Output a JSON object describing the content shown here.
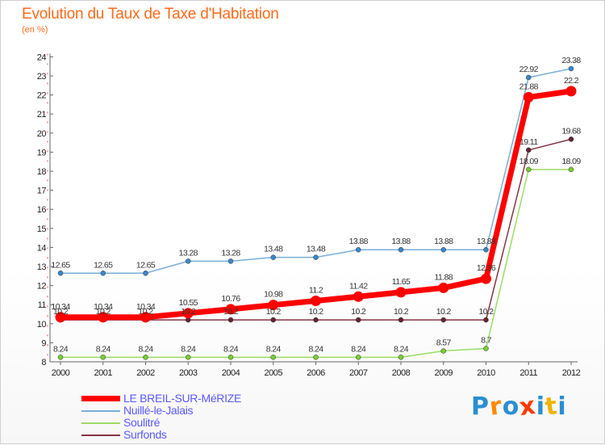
{
  "title": "Evolution du Taux de Taxe d'Habitation",
  "unit": "(en %)",
  "logo": {
    "text": "Proxiti",
    "colors": [
      "#2a8fd0",
      "#ff8a00",
      "#2a8fd0",
      "#ff3a00",
      "#2a8fd0",
      "#f0b400",
      "#2a8fd0"
    ]
  },
  "chart_data": {
    "type": "line",
    "title": "Evolution du Taux de Taxe d'Habitation",
    "ylabel": "(en %)",
    "xlabel": "",
    "categories": [
      "2000",
      "2001",
      "2002",
      "2003",
      "2004",
      "2005",
      "2006",
      "2007",
      "2008",
      "2009",
      "2010",
      "2011",
      "2012"
    ],
    "ylim": [
      8,
      24
    ],
    "yticks": [
      8,
      9,
      10,
      11,
      12,
      13,
      14,
      15,
      16,
      17,
      18,
      19,
      20,
      21,
      22,
      23,
      24
    ],
    "legend_position": "bottom-left",
    "series": [
      {
        "name": "Soulitré",
        "color": "#99dd66",
        "marker": "#77cc33",
        "width": 1.5,
        "values": [
          8.24,
          8.24,
          8.24,
          8.24,
          8.24,
          8.24,
          8.24,
          8.24,
          8.24,
          8.57,
          8.7,
          18.09,
          18.09
        ],
        "labels": [
          "8.24",
          "8.24",
          "8.24",
          "8.24",
          "8.24",
          "8.24",
          "8.24",
          "8.24",
          "8.24",
          "8.57",
          "8.7",
          "18.09",
          "18.09"
        ]
      },
      {
        "name": "Surfonds",
        "color": "#883344",
        "marker": "#662233",
        "width": 1.5,
        "values": [
          10.2,
          10.2,
          10.2,
          10.2,
          10.2,
          10.2,
          10.2,
          10.2,
          10.2,
          10.2,
          10.2,
          19.11,
          19.68
        ],
        "labels": [
          "10.2",
          "10.2",
          "10.2",
          "10.2",
          "10.2",
          "10.2",
          "10.2",
          "10.2",
          "10.2",
          "10.2",
          "10.2",
          "19.11",
          "19.68"
        ]
      },
      {
        "name": "Nuillé-le-Jalais",
        "color": "#7aaed8",
        "marker": "#3a86c8",
        "width": 1.5,
        "values": [
          12.65,
          12.65,
          12.65,
          13.28,
          13.28,
          13.48,
          13.48,
          13.88,
          13.88,
          13.88,
          13.88,
          22.92,
          23.38
        ],
        "labels": [
          "12.65",
          "12.65",
          "12.65",
          "13.28",
          "13.28",
          "13.48",
          "13.48",
          "13.88",
          "13.88",
          "13.88",
          "13.88",
          "22.92",
          "23.38"
        ]
      },
      {
        "name": "LE BREIL-SUR-MéRIZE",
        "color": "#ff0000",
        "marker": "#ff0000",
        "width": 7,
        "values": [
          10.34,
          10.34,
          10.34,
          10.55,
          10.76,
          10.98,
          11.2,
          11.42,
          11.65,
          11.88,
          12.36,
          21.88,
          22.2
        ],
        "labels": [
          "10.34",
          "10.34",
          "10.34",
          "10.55",
          "10.76",
          "10.98",
          "11.2",
          "11.42",
          "11.65",
          "11.88",
          "12.36",
          "21.88",
          "22.2"
        ]
      }
    ]
  },
  "legend": [
    {
      "label": "LE BREIL-SUR-MéRIZE",
      "color": "#ff0000"
    },
    {
      "label": "Nuillé-le-Jalais",
      "color": "#7aaed8"
    },
    {
      "label": "Soulitré",
      "color": "#99dd66"
    },
    {
      "label": "Surfonds",
      "color": "#883344"
    }
  ]
}
